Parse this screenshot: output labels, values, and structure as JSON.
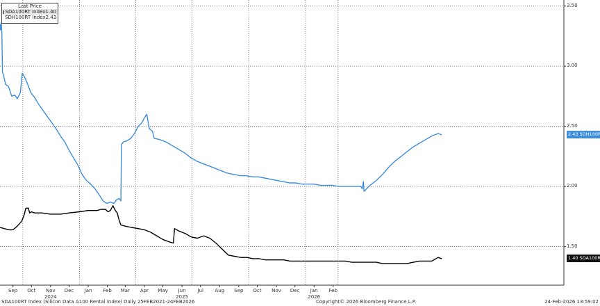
{
  "legend": {
    "title": "Last Price",
    "items": [
      {
        "label": "SDA100RT Index",
        "value": "1.40",
        "color": "#000000"
      },
      {
        "label": "SDH100RT Index",
        "value": "2.43",
        "color": "#3e8ddd"
      }
    ]
  },
  "footer": {
    "left": "SDA100RT Index (Silicon Data A100 Rental Index) Daily 25FEB2021-24FEB2026",
    "center": "Copyright© 2026 Bloomberg Finance L.P.",
    "right": "24-Feb-2026 13:59:02"
  },
  "last_labels": {
    "sdh": "2.43 SDH100RT",
    "sda": "1.40 SDA100RT"
  },
  "chart_data": {
    "type": "line",
    "ylim": [
      1.18,
      3.55
    ],
    "yticks": [
      "3.50",
      "3.00",
      "2.50",
      "2.00",
      "1.50"
    ],
    "xlim": [
      "2023-08-25",
      "2026-02-24"
    ],
    "xticks": [
      {
        "label": "Sep",
        "date": "2023-09-15"
      },
      {
        "label": "Oct",
        "date": "2023-10-15"
      },
      {
        "label": "Nov",
        "date": "2023-11-15"
      },
      {
        "label": "Dec",
        "date": "2023-12-15"
      },
      {
        "label": "Jan",
        "date": "2024-01-15"
      },
      {
        "label": "Feb",
        "date": "2024-02-15"
      },
      {
        "label": "Mar",
        "date": "2024-03-15"
      },
      {
        "label": "Apr",
        "date": "2024-04-15"
      },
      {
        "label": "May",
        "date": "2024-05-15"
      },
      {
        "label": "Jun",
        "date": "2024-06-15"
      },
      {
        "label": "Jul",
        "date": "2024-07-15"
      },
      {
        "label": "Aug",
        "date": "2024-08-15"
      },
      {
        "label": "Sep",
        "date": "2024-09-15"
      },
      {
        "label": "Oct",
        "date": "2024-10-15"
      },
      {
        "label": "Nov",
        "date": "2024-11-15"
      },
      {
        "label": "Dec",
        "date": "2024-12-15"
      },
      {
        "label": "Jan",
        "date": "2025-01-15"
      },
      {
        "label": "Feb",
        "date": "2025-02-15"
      }
    ],
    "years": [
      {
        "label": "2024",
        "date": "2023-11-15"
      },
      {
        "label": "2025",
        "date": "2024-06-15"
      },
      {
        "label": "2026",
        "date": "2025-01-15"
      }
    ],
    "vlines": [
      "2023-10-01",
      "2024-01-01",
      "2024-04-01",
      "2024-07-01",
      "2024-10-01",
      "2025-01-01",
      "2025-02-23"
    ],
    "series": [
      {
        "name": "SDH100RT Index",
        "color": "#3e8ddd",
        "points": [
          [
            "2023-08-25",
            3.35
          ],
          [
            "2023-08-26",
            3.3
          ],
          [
            "2023-08-27",
            3.36
          ],
          [
            "2023-08-28",
            3.27
          ],
          [
            "2023-08-29",
            2.95
          ],
          [
            "2023-08-31",
            2.92
          ],
          [
            "2023-09-03",
            2.85
          ],
          [
            "2023-09-08",
            2.83
          ],
          [
            "2023-09-13",
            2.75
          ],
          [
            "2023-09-18",
            2.76
          ],
          [
            "2023-09-22",
            2.73
          ],
          [
            "2023-09-27",
            2.78
          ],
          [
            "2023-09-30",
            2.94
          ],
          [
            "2023-10-03",
            2.92
          ],
          [
            "2023-10-08",
            2.86
          ],
          [
            "2023-10-14",
            2.78
          ],
          [
            "2023-10-20",
            2.74
          ],
          [
            "2023-10-27",
            2.68
          ],
          [
            "2023-11-03",
            2.63
          ],
          [
            "2023-11-10",
            2.58
          ],
          [
            "2023-11-17",
            2.53
          ],
          [
            "2023-11-24",
            2.48
          ],
          [
            "2023-12-01",
            2.42
          ],
          [
            "2023-12-08",
            2.37
          ],
          [
            "2023-12-15",
            2.3
          ],
          [
            "2023-12-22",
            2.24
          ],
          [
            "2023-12-29",
            2.18
          ],
          [
            "2024-01-05",
            2.1
          ],
          [
            "2024-01-12",
            2.05
          ],
          [
            "2024-01-19",
            2.02
          ],
          [
            "2024-01-26",
            1.98
          ],
          [
            "2024-02-02",
            1.93
          ],
          [
            "2024-02-08",
            1.88
          ],
          [
            "2024-02-14",
            1.86
          ],
          [
            "2024-02-20",
            1.87
          ],
          [
            "2024-02-26",
            1.86
          ],
          [
            "2024-03-01",
            1.89
          ],
          [
            "2024-03-05",
            1.9
          ],
          [
            "2024-03-08",
            1.88
          ],
          [
            "2024-03-09",
            2.35
          ],
          [
            "2024-03-12",
            2.37
          ],
          [
            "2024-03-18",
            2.38
          ],
          [
            "2024-03-24",
            2.4
          ],
          [
            "2024-03-30",
            2.44
          ],
          [
            "2024-04-05",
            2.5
          ],
          [
            "2024-04-11",
            2.53
          ],
          [
            "2024-04-15",
            2.57
          ],
          [
            "2024-04-19",
            2.6
          ],
          [
            "2024-04-23",
            2.48
          ],
          [
            "2024-04-28",
            2.46
          ],
          [
            "2024-05-01",
            2.4
          ],
          [
            "2024-05-10",
            2.39
          ],
          [
            "2024-05-20",
            2.37
          ],
          [
            "2024-05-30",
            2.34
          ],
          [
            "2024-06-09",
            2.31
          ],
          [
            "2024-06-19",
            2.28
          ],
          [
            "2024-06-29",
            2.24
          ],
          [
            "2024-07-09",
            2.21
          ],
          [
            "2024-07-19",
            2.19
          ],
          [
            "2024-07-29",
            2.17
          ],
          [
            "2024-08-08",
            2.15
          ],
          [
            "2024-08-18",
            2.13
          ],
          [
            "2024-08-28",
            2.11
          ],
          [
            "2024-09-07",
            2.1
          ],
          [
            "2024-09-17",
            2.09
          ],
          [
            "2024-09-27",
            2.09
          ],
          [
            "2024-10-07",
            2.08
          ],
          [
            "2024-10-17",
            2.08
          ],
          [
            "2024-10-27",
            2.07
          ],
          [
            "2024-11-06",
            2.06
          ],
          [
            "2024-11-16",
            2.05
          ],
          [
            "2024-11-26",
            2.04
          ],
          [
            "2024-12-06",
            2.03
          ],
          [
            "2024-12-16",
            2.03
          ],
          [
            "2024-12-26",
            2.02
          ],
          [
            "2025-01-05",
            2.02
          ],
          [
            "2025-01-15",
            2.02
          ],
          [
            "2025-01-25",
            2.01
          ],
          [
            "2025-02-04",
            2.01
          ],
          [
            "2025-02-14",
            2.01
          ],
          [
            "2025-02-24",
            2.0
          ],
          [
            "2025-03-06",
            2.0
          ],
          [
            "2025-03-16",
            2.0
          ],
          [
            "2025-03-26",
            2.0
          ],
          [
            "2025-04-01",
            2.0
          ],
          [
            "2025-04-03",
            1.98
          ],
          [
            "2025-04-05",
            2.04
          ],
          [
            "2025-04-06",
            1.96
          ],
          [
            "2025-04-10",
            1.98
          ],
          [
            "2025-04-16",
            2.01
          ],
          [
            "2025-04-26",
            2.05
          ],
          [
            "2025-05-06",
            2.1
          ],
          [
            "2025-05-16",
            2.16
          ],
          [
            "2025-05-26",
            2.21
          ],
          [
            "2025-06-05",
            2.25
          ],
          [
            "2025-06-15",
            2.29
          ],
          [
            "2025-06-25",
            2.33
          ],
          [
            "2025-07-05",
            2.36
          ],
          [
            "2025-07-15",
            2.39
          ],
          [
            "2025-07-25",
            2.42
          ],
          [
            "2025-08-04",
            2.44
          ],
          [
            "2025-08-10",
            2.43
          ]
        ]
      },
      {
        "name": "SDA100RT Index",
        "color": "#000000",
        "points": [
          [
            "2023-08-25",
            1.66
          ],
          [
            "2023-09-01",
            1.65
          ],
          [
            "2023-09-08",
            1.64
          ],
          [
            "2023-09-15",
            1.64
          ],
          [
            "2023-09-22",
            1.67
          ],
          [
            "2023-09-29",
            1.71
          ],
          [
            "2023-10-03",
            1.76
          ],
          [
            "2023-10-06",
            1.82
          ],
          [
            "2023-10-10",
            1.82
          ],
          [
            "2023-10-12",
            1.78
          ],
          [
            "2023-10-15",
            1.79
          ],
          [
            "2023-10-20",
            1.78
          ],
          [
            "2023-11-01",
            1.78
          ],
          [
            "2023-11-15",
            1.77
          ],
          [
            "2023-12-01",
            1.77
          ],
          [
            "2023-12-15",
            1.78
          ],
          [
            "2024-01-01",
            1.79
          ],
          [
            "2024-01-15",
            1.8
          ],
          [
            "2024-01-29",
            1.8
          ],
          [
            "2024-02-05",
            1.81
          ],
          [
            "2024-02-12",
            1.81
          ],
          [
            "2024-02-16",
            1.79
          ],
          [
            "2024-02-20",
            1.8
          ],
          [
            "2024-02-24",
            1.84
          ],
          [
            "2024-02-28",
            1.8
          ],
          [
            "2024-03-02",
            1.78
          ],
          [
            "2024-03-05",
            1.72
          ],
          [
            "2024-03-08",
            1.68
          ],
          [
            "2024-03-15",
            1.67
          ],
          [
            "2024-03-25",
            1.66
          ],
          [
            "2024-04-05",
            1.65
          ],
          [
            "2024-04-15",
            1.64
          ],
          [
            "2024-04-25",
            1.62
          ],
          [
            "2024-05-05",
            1.59
          ],
          [
            "2024-05-15",
            1.56
          ],
          [
            "2024-05-25",
            1.54
          ],
          [
            "2024-06-01",
            1.53
          ],
          [
            "2024-06-03",
            1.65
          ],
          [
            "2024-06-10",
            1.63
          ],
          [
            "2024-06-20",
            1.61
          ],
          [
            "2024-06-30",
            1.58
          ],
          [
            "2024-07-10",
            1.57
          ],
          [
            "2024-07-20",
            1.59
          ],
          [
            "2024-07-30",
            1.57
          ],
          [
            "2024-08-09",
            1.53
          ],
          [
            "2024-08-19",
            1.48
          ],
          [
            "2024-08-29",
            1.43
          ],
          [
            "2024-09-08",
            1.42
          ],
          [
            "2024-09-18",
            1.41
          ],
          [
            "2024-09-28",
            1.41
          ],
          [
            "2024-10-08",
            1.4
          ],
          [
            "2024-10-18",
            1.4
          ],
          [
            "2024-10-28",
            1.39
          ],
          [
            "2024-11-07",
            1.39
          ],
          [
            "2024-11-17",
            1.39
          ],
          [
            "2024-11-27",
            1.39
          ],
          [
            "2024-12-07",
            1.38
          ],
          [
            "2024-12-17",
            1.38
          ],
          [
            "2024-12-27",
            1.38
          ],
          [
            "2025-01-06",
            1.38
          ],
          [
            "2025-01-16",
            1.38
          ],
          [
            "2025-01-26",
            1.38
          ],
          [
            "2025-02-05",
            1.38
          ],
          [
            "2025-02-15",
            1.38
          ],
          [
            "2025-02-25",
            1.38
          ],
          [
            "2025-03-07",
            1.38
          ],
          [
            "2025-03-17",
            1.37
          ],
          [
            "2025-03-27",
            1.37
          ],
          [
            "2025-04-06",
            1.37
          ],
          [
            "2025-04-16",
            1.37
          ],
          [
            "2025-04-26",
            1.37
          ],
          [
            "2025-05-06",
            1.36
          ],
          [
            "2025-05-16",
            1.36
          ],
          [
            "2025-05-26",
            1.36
          ],
          [
            "2025-06-05",
            1.36
          ],
          [
            "2025-06-15",
            1.36
          ],
          [
            "2025-06-25",
            1.37
          ],
          [
            "2025-07-05",
            1.38
          ],
          [
            "2025-07-15",
            1.38
          ],
          [
            "2025-07-25",
            1.38
          ],
          [
            "2025-08-04",
            1.41
          ],
          [
            "2025-08-10",
            1.4
          ]
        ]
      }
    ]
  }
}
